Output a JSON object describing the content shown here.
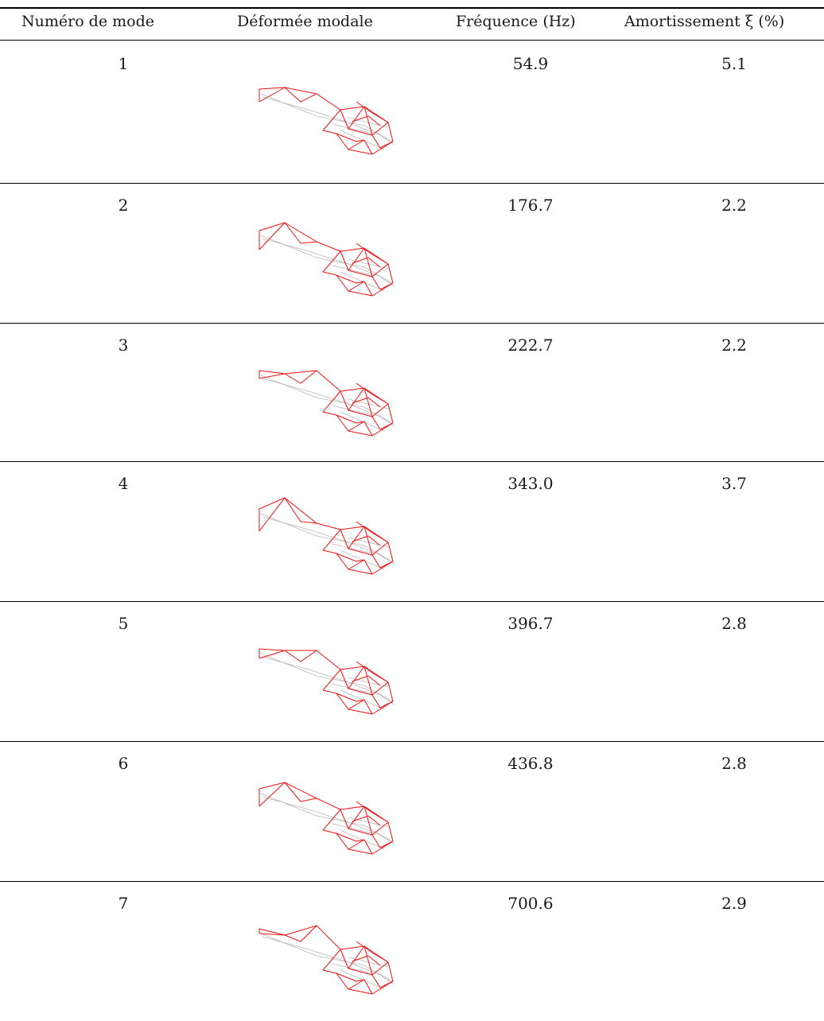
{
  "header": {
    "mode_number": "Numéro de mode",
    "mode_shape": "Déformée modale",
    "frequency": "Fréquence (Hz)",
    "damping": "Amortissement ξ (%)"
  },
  "rows": [
    {
      "mode": "1",
      "frequency": "54.9",
      "damping": "5.1"
    },
    {
      "mode": "2",
      "frequency": "176.7",
      "damping": "2.2"
    },
    {
      "mode": "3",
      "frequency": "222.7",
      "damping": "2.2"
    },
    {
      "mode": "4",
      "frequency": "343.0",
      "damping": "3.7"
    },
    {
      "mode": "5",
      "frequency": "396.7",
      "damping": "2.8"
    },
    {
      "mode": "6",
      "frequency": "436.8",
      "damping": "2.8"
    },
    {
      "mode": "7",
      "frequency": "700.6",
      "damping": "2.9"
    }
  ],
  "colors": {
    "rules": "#000000",
    "deformed_mesh": "#ee1111",
    "undeformed_mesh": "#b8b8b8"
  }
}
